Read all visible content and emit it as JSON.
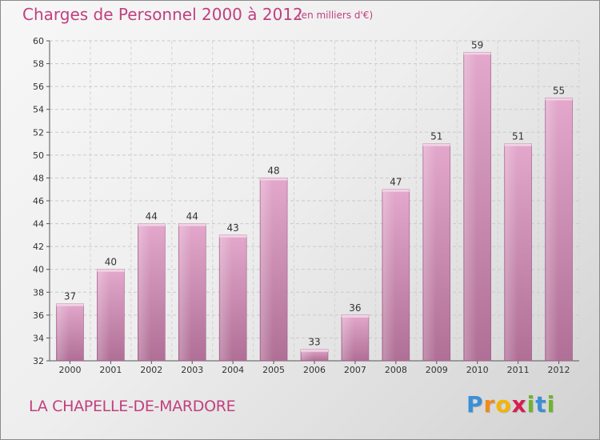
{
  "title": "Charges de Personnel 2000 à 2012",
  "subtitle": "(en milliers d'€)",
  "place": "LA CHAPELLE-DE-MARDORE",
  "logo": {
    "letters": [
      "P",
      "r",
      "o",
      "x",
      "i",
      "t",
      "i"
    ],
    "colors": [
      "#3a8fd6",
      "#f08a1c",
      "#f5b400",
      "#d61e4f",
      "#6cb52d",
      "#3a8fd6",
      "#6cb52d"
    ]
  },
  "chart_data": {
    "type": "bar",
    "title": "Charges de Personnel 2000 à 2012",
    "subtitle": "(en milliers d'€)",
    "categories": [
      "2000",
      "2001",
      "2002",
      "2003",
      "2004",
      "2005",
      "2006",
      "2007",
      "2008",
      "2009",
      "2010",
      "2011",
      "2012"
    ],
    "values": [
      37,
      40,
      44,
      44,
      43,
      48,
      33,
      36,
      47,
      51,
      59,
      51,
      55
    ],
    "ylim": [
      32,
      60
    ],
    "yticks": [
      32,
      34,
      36,
      38,
      40,
      42,
      44,
      46,
      48,
      50,
      52,
      54,
      56,
      58,
      60
    ],
    "grid": true,
    "bar_color": "#d38fb6"
  }
}
